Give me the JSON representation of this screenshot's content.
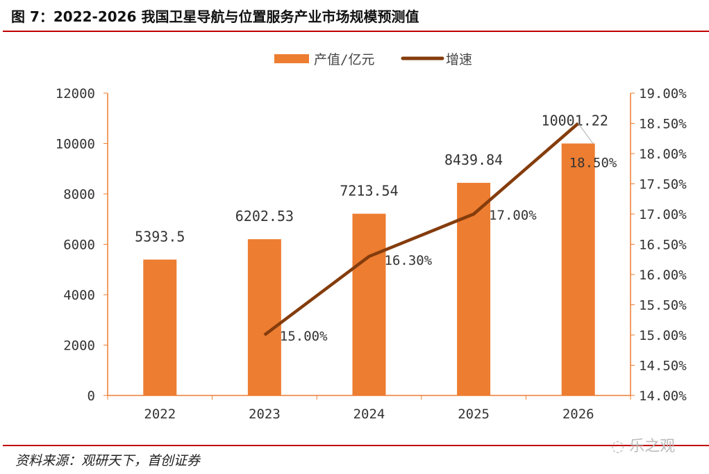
{
  "title": "图 7：2022-2026 我国卫星导航与位置服务产业市场规模预测值",
  "source": "资料来源：观研天下，首创证券",
  "watermark": "乐之观",
  "chart_data": {
    "type": "bar+line",
    "categories": [
      "2022",
      "2023",
      "2024",
      "2025",
      "2026"
    ],
    "series": [
      {
        "name": "产值/亿元",
        "type": "bar",
        "axis": "left",
        "color": "#ED7D31",
        "values": [
          5393.5,
          6202.53,
          7213.54,
          8439.84,
          10001.22
        ],
        "labels": [
          "5393.5",
          "6202.53",
          "7213.54",
          "8439.84",
          "10001.22"
        ]
      },
      {
        "name": "增速",
        "type": "line",
        "axis": "right",
        "color": "#843C0C",
        "values": [
          null,
          15.0,
          16.3,
          17.0,
          18.5
        ],
        "labels": [
          "",
          "15.00%",
          "16.30%",
          "17.00%",
          "18.50%"
        ]
      }
    ],
    "left_axis": {
      "ylim": [
        0,
        12000
      ],
      "ticks": [
        "0",
        "2000",
        "4000",
        "6000",
        "8000",
        "10000",
        "12000"
      ]
    },
    "right_axis": {
      "ylim": [
        14,
        19
      ],
      "ticks": [
        "14.00%",
        "14.50%",
        "15.00%",
        "15.50%",
        "16.00%",
        "16.50%",
        "17.00%",
        "17.50%",
        "18.00%",
        "18.50%",
        "19.00%"
      ]
    },
    "legend": "top-center",
    "grid": false
  }
}
